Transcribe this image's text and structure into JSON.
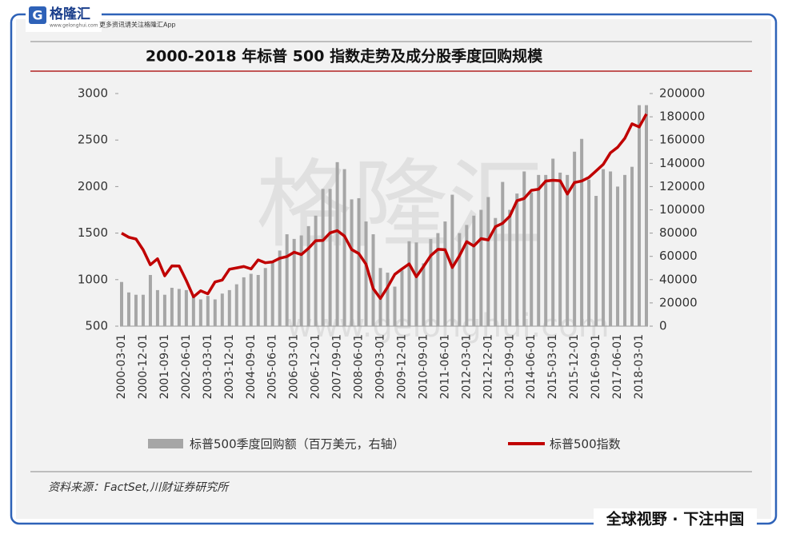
{
  "header": {
    "logo_icon": "G",
    "logo_text": "格隆汇",
    "logo_url": "www.gelonghui.com",
    "tagline": "更多资讯请关注格隆汇App"
  },
  "watermark": {
    "text": "格隆汇",
    "url": "www.gelonghui.com"
  },
  "chart_data": {
    "type": "combo",
    "title": "2000-2018 年标普 500 指数走势及成分股季度回购规模",
    "categories": [
      "2000-03-01",
      null,
      null,
      "2000-12-01",
      null,
      null,
      "2001-09-01",
      null,
      null,
      "2002-06-01",
      null,
      null,
      "2003-03-01",
      null,
      null,
      "2003-12-01",
      null,
      null,
      "2004-09-01",
      null,
      null,
      "2005-06-01",
      null,
      null,
      "2006-03-01",
      null,
      null,
      "2006-12-01",
      null,
      null,
      "2007-09-01",
      null,
      null,
      "2008-06-01",
      null,
      null,
      "2009-03-01",
      null,
      null,
      "2009-12-01",
      null,
      null,
      "2010-09-01",
      null,
      null,
      "2011-06-01",
      null,
      null,
      "2012-03-01",
      null,
      null,
      "2012-12-01",
      null,
      null,
      "2013-09-01",
      null,
      null,
      "2014-06-01",
      null,
      null,
      "2015-03-01",
      null,
      null,
      "2015-12-01",
      null,
      null,
      "2016-09-01",
      null,
      null,
      "2017-06-01",
      null,
      null,
      "2018-03-01",
      null
    ],
    "series": [
      {
        "name": "标普500季度回购额（百万美元，右轴）",
        "type": "bar",
        "axis": "y2",
        "color": "#a6a6a6",
        "values": [
          38000,
          29000,
          27000,
          27000,
          44000,
          31000,
          27000,
          33000,
          32000,
          31000,
          27000,
          23000,
          26000,
          23000,
          28000,
          31000,
          36000,
          42000,
          45000,
          44000,
          50000,
          56000,
          65000,
          79000,
          75000,
          78000,
          86000,
          95000,
          118000,
          118000,
          141000,
          135000,
          109000,
          110000,
          90000,
          79000,
          50000,
          46000,
          34000,
          48000,
          73000,
          72000,
          54000,
          75000,
          80000,
          90000,
          113000,
          80000,
          87000,
          95000,
          100000,
          111000,
          93000,
          124000,
          100000,
          114000,
          133000,
          115000,
          130000,
          130000,
          144000,
          132000,
          130000,
          150000,
          161000,
          126000,
          112000,
          135000,
          133000,
          120000,
          130000,
          137000,
          190000,
          190000
        ]
      },
      {
        "name": "标普500指数",
        "type": "line",
        "color": "#c00000",
        "values": [
          1499,
          1455,
          1436,
          1320,
          1160,
          1224,
          1041,
          1148,
          1147,
          990,
          815,
          880,
          848,
          975,
          996,
          1112,
          1126,
          1141,
          1115,
          1212,
          1181,
          1191,
          1229,
          1248,
          1295,
          1270,
          1336,
          1418,
          1421,
          1503,
          1527,
          1468,
          1323,
          1280,
          1166,
          903,
          798,
          919,
          1057,
          1115,
          1169,
          1031,
          1141,
          1258,
          1326,
          1321,
          1131,
          1258,
          1408,
          1362,
          1441,
          1426,
          1569,
          1606,
          1682,
          1848,
          1872,
          1960,
          1972,
          2059,
          2068,
          2063,
          1920,
          2044,
          2060,
          2099,
          2168,
          2239,
          2363,
          2423,
          2519,
          2674,
          2641,
          2780
        ]
      }
    ],
    "ylim": [
      500,
      3000
    ],
    "yticks": [
      500,
      1000,
      1500,
      2000,
      2500,
      3000
    ],
    "y2lim": [
      0,
      200000
    ],
    "y2ticks": [
      0,
      20000,
      40000,
      60000,
      80000,
      100000,
      120000,
      140000,
      160000,
      180000,
      200000
    ],
    "grid": false,
    "legend": "bottom",
    "source": "资料来源：FactSet,川财证券研究所"
  },
  "footer": {
    "slogan": "全球视野 · 下注中国"
  }
}
